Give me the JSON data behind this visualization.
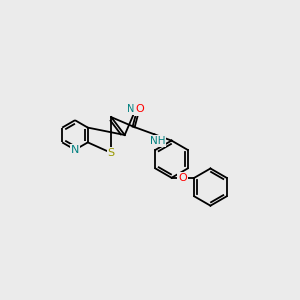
{
  "bg_color": "#ebebeb",
  "bond_color": "#000000",
  "atom_colors": {
    "N": "#008080",
    "S": "#999900",
    "O": "#ff0000",
    "C": "#000000"
  },
  "figsize": [
    3.0,
    3.0
  ],
  "dpi": 100
}
